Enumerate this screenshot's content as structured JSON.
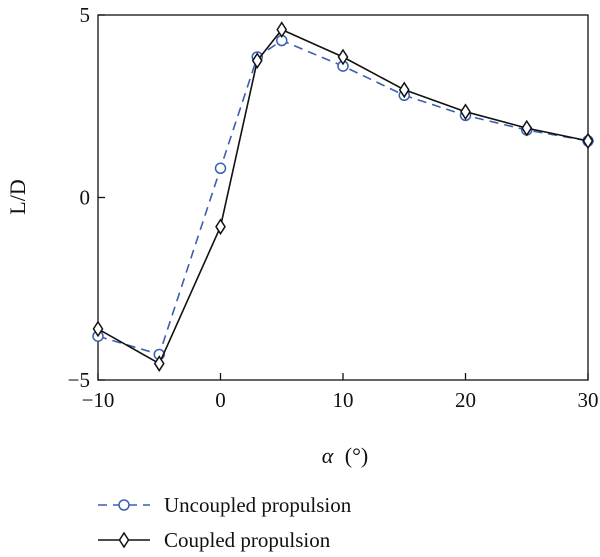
{
  "chart_data": {
    "type": "line",
    "title": "",
    "xlabel_symbol": "α",
    "xlabel_unit": "(°)",
    "ylabel": "L/D",
    "xlim": [
      -10,
      30
    ],
    "ylim": [
      -5,
      5
    ],
    "x_ticks": [
      -10,
      0,
      10,
      20,
      30
    ],
    "x_tick_labels": [
      "−10",
      "0",
      "10",
      "20",
      "30"
    ],
    "y_ticks": [
      -5,
      0,
      5
    ],
    "y_tick_labels": [
      "−5",
      "0",
      "5"
    ],
    "grid": false,
    "legend_position": "bottom-left",
    "series": [
      {
        "name": "Uncoupled propulsion",
        "color": "#3a5fb0",
        "line_style": "dashed",
        "marker": "circle",
        "x": [
          -10,
          -5,
          0,
          3,
          5,
          10,
          15,
          20,
          25,
          30
        ],
        "y": [
          -3.8,
          -4.3,
          0.8,
          3.85,
          4.3,
          3.6,
          2.8,
          2.25,
          1.85,
          1.55
        ]
      },
      {
        "name": "Coupled propulsion",
        "color": "#111111",
        "line_style": "solid",
        "marker": "diamond",
        "x": [
          -10,
          -5,
          0,
          3,
          5,
          10,
          15,
          20,
          25,
          30
        ],
        "y": [
          -3.6,
          -4.55,
          -0.8,
          3.75,
          4.6,
          3.85,
          2.95,
          2.35,
          1.9,
          1.55
        ]
      }
    ]
  }
}
